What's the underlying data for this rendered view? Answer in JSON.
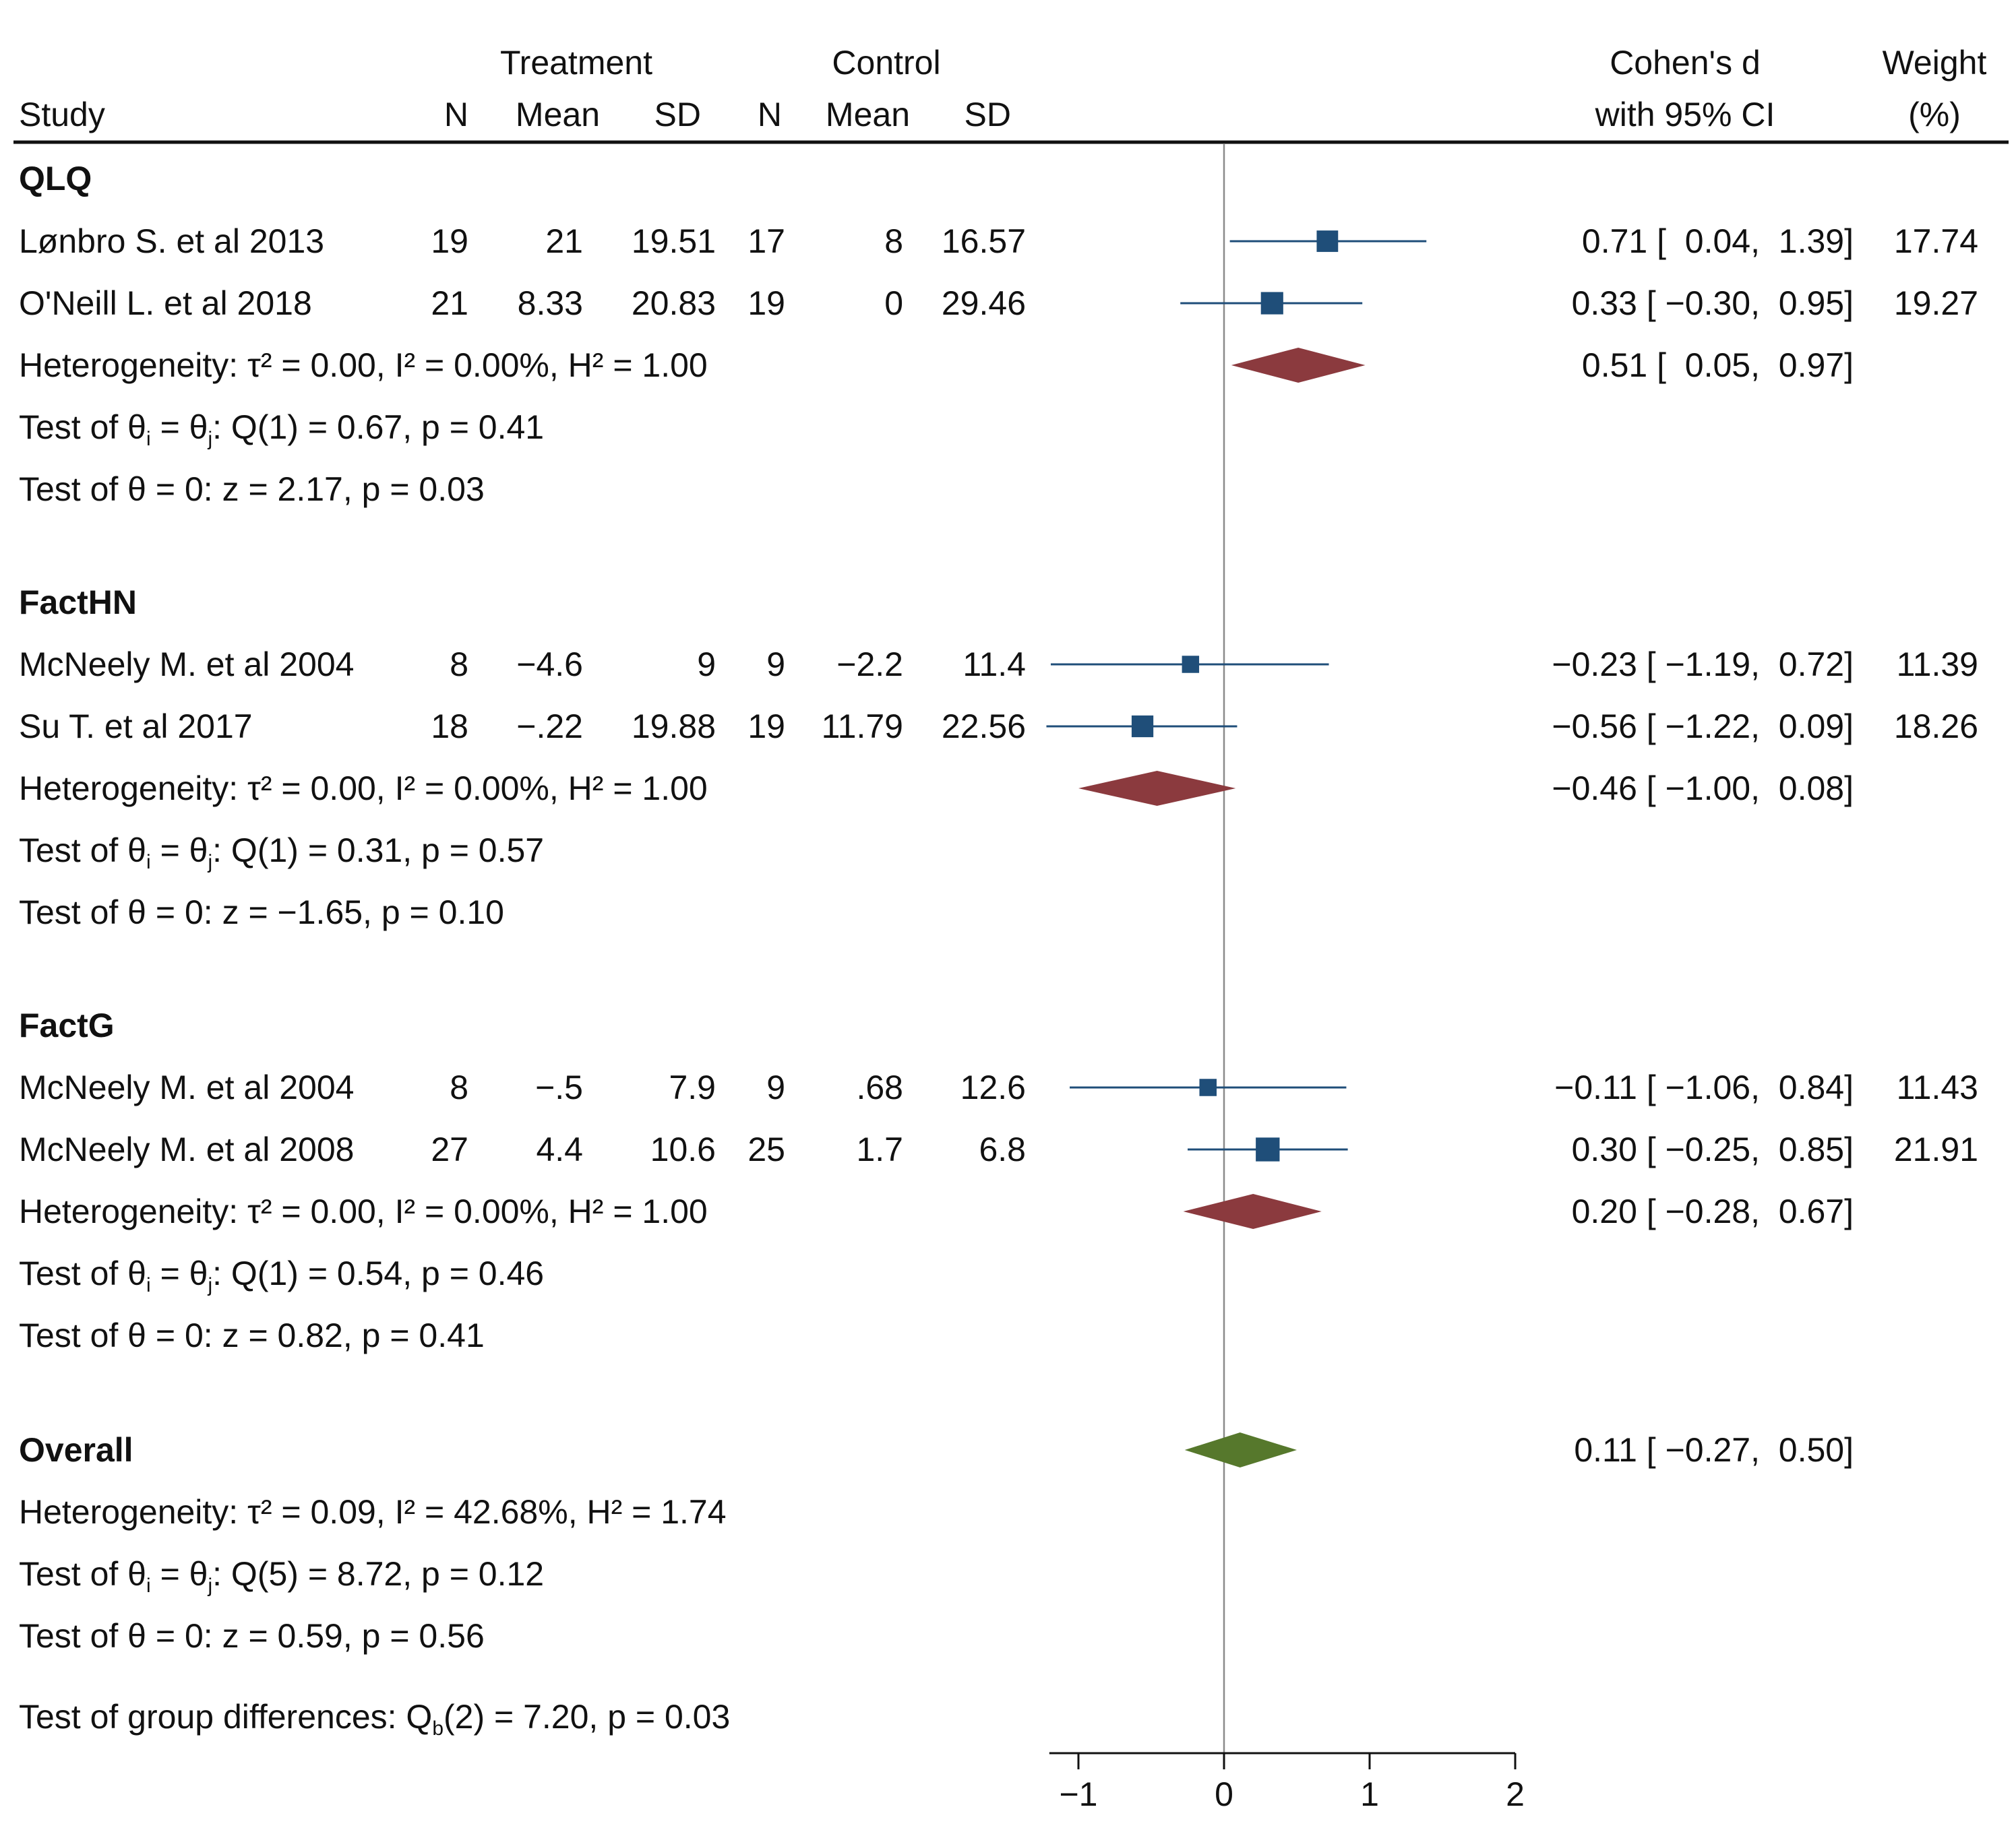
{
  "header": {
    "study": "Study",
    "treatment": "Treatment",
    "control": "Control",
    "n": "N",
    "mean": "Mean",
    "sd": "SD",
    "effect_line1": "Cohen's d",
    "effect_line2": "with 95% CI",
    "weight_line1": "Weight",
    "weight_line2": "(%)"
  },
  "groups": [
    {
      "name": "QLQ",
      "studies": [
        {
          "study": "Lønbro S. et al 2013",
          "tn": "19",
          "tmean": "21",
          "tsd": "19.51",
          "cn": "17",
          "cmean": "8",
          "csd": "16.57",
          "ci_text": "0.71 [  0.04,  1.39]",
          "weight": "17.74"
        },
        {
          "study": "O'Neill L. et al 2018",
          "tn": "21",
          "tmean": "8.33",
          "tsd": "20.83",
          "cn": "19",
          "cmean": "0",
          "csd": "29.46",
          "ci_text": "0.33 [ −0.30,  0.95]",
          "weight": "19.27"
        }
      ],
      "het_label": "Heterogeneity:",
      "het_text": "τ² = 0.00, I² = 0.00%, H² = 1.00",
      "pooled_text": "0.51 [  0.05,  0.97]",
      "test_q_label": "Test of θ",
      "test_q_sub_i": "i",
      "test_q_mid": " = θ",
      "test_q_sub_j": "j",
      "test_q_text": ": Q(1) = 0.67, p = 0.41",
      "test_z_text": "Test of θ = 0: z = 2.17, p = 0.03"
    },
    {
      "name": "FactHN",
      "studies": [
        {
          "study": "McNeely M. et al 2004",
          "tn": "8",
          "tmean": "−4.6",
          "tsd": "9",
          "cn": "9",
          "cmean": "−2.2",
          "csd": "11.4",
          "ci_text": "−0.23 [ −1.19,  0.72]",
          "weight": "11.39"
        },
        {
          "study": "Su T. et al 2017",
          "tn": "18",
          "tmean": "−.22",
          "tsd": "19.88",
          "cn": "19",
          "cmean": "11.79",
          "csd": "22.56",
          "ci_text": "−0.56 [ −1.22,  0.09]",
          "weight": "18.26"
        }
      ],
      "het_label": "Heterogeneity:",
      "het_text": "τ² = 0.00, I² = 0.00%, H² = 1.00",
      "pooled_text": "−0.46 [ −1.00,  0.08]",
      "test_q_label": "Test of θ",
      "test_q_sub_i": "i",
      "test_q_mid": " = θ",
      "test_q_sub_j": "j",
      "test_q_text": ": Q(1) = 0.31, p = 0.57",
      "test_z_text": "Test of θ = 0: z = −1.65, p = 0.10"
    },
    {
      "name": "FactG",
      "studies": [
        {
          "study": "McNeely M. et al 2004",
          "tn": "8",
          "tmean": "−.5",
          "tsd": "7.9",
          "cn": "9",
          "cmean": ".68",
          "csd": "12.6",
          "ci_text": "−0.11 [ −1.06,  0.84]",
          "weight": "11.43"
        },
        {
          "study": "McNeely M. et al 2008",
          "tn": "27",
          "tmean": "4.4",
          "tsd": "10.6",
          "cn": "25",
          "cmean": "1.7",
          "csd": "6.8",
          "ci_text": "0.30 [ −0.25,  0.85]",
          "weight": "21.91"
        }
      ],
      "het_label": "Heterogeneity:",
      "het_text": "τ² = 0.00, I² = 0.00%, H² = 1.00",
      "pooled_text": "0.20 [ −0.28,  0.67]",
      "test_q_label": "Test of θ",
      "test_q_sub_i": "i",
      "test_q_mid": " = θ",
      "test_q_sub_j": "j",
      "test_q_text": ": Q(1) = 0.54, p = 0.46",
      "test_z_text": "Test of θ = 0: z = 0.82, p = 0.41"
    }
  ],
  "overall": {
    "name": "Overall",
    "het_label": "Heterogeneity:",
    "het_text": "τ² = 0.09, I² = 42.68%, H² = 1.74",
    "pooled_text": "0.11 [ −0.27,  0.50]",
    "test_q_label": "Test of θ",
    "test_q_sub_i": "i",
    "test_q_mid": " = θ",
    "test_q_sub_j": "j",
    "test_q_text": ": Q(5) = 8.72, p = 0.12",
    "test_z_text": "Test of θ = 0: z = 0.59, p = 0.56",
    "group_diff_label": "Test of group differences: Q",
    "group_diff_sub": "b",
    "group_diff_text": "(2) = 7.20, p = 0.03"
  },
  "chart_data": {
    "type": "forest",
    "xlabel": "",
    "xlim": [
      -1.2,
      2
    ],
    "xticks": [
      -1,
      0,
      1,
      2
    ],
    "xtick_labels": [
      "−1",
      "0",
      "1",
      "2"
    ],
    "reference_line": 0,
    "study_marker_color": "#1f4e79",
    "subgroup_diamond_color": "#8b3a3e",
    "overall_diamond_color": "#56782c",
    "studies": [
      {
        "group": "QLQ",
        "study": "Lønbro S. et al 2013",
        "d": 0.71,
        "lo": 0.04,
        "hi": 1.39,
        "weight": 17.74
      },
      {
        "group": "QLQ",
        "study": "O'Neill L. et al 2018",
        "d": 0.33,
        "lo": -0.3,
        "hi": 0.95,
        "weight": 19.27
      },
      {
        "group": "FactHN",
        "study": "McNeely M. et al 2004",
        "d": -0.23,
        "lo": -1.19,
        "hi": 0.72,
        "weight": 11.39
      },
      {
        "group": "FactHN",
        "study": "Su T. et al 2017",
        "d": -0.56,
        "lo": -1.22,
        "hi": 0.09,
        "weight": 18.26
      },
      {
        "group": "FactG",
        "study": "McNeely M. et al 2004",
        "d": -0.11,
        "lo": -1.06,
        "hi": 0.84,
        "weight": 11.43
      },
      {
        "group": "FactG",
        "study": "McNeely M. et al 2008",
        "d": 0.3,
        "lo": -0.25,
        "hi": 0.85,
        "weight": 21.91
      }
    ],
    "subgroups": [
      {
        "group": "QLQ",
        "d": 0.51,
        "lo": 0.05,
        "hi": 0.97
      },
      {
        "group": "FactHN",
        "d": -0.46,
        "lo": -1.0,
        "hi": 0.08
      },
      {
        "group": "FactG",
        "d": 0.2,
        "lo": -0.28,
        "hi": 0.67
      }
    ],
    "overall": {
      "d": 0.11,
      "lo": -0.27,
      "hi": 0.5
    }
  }
}
